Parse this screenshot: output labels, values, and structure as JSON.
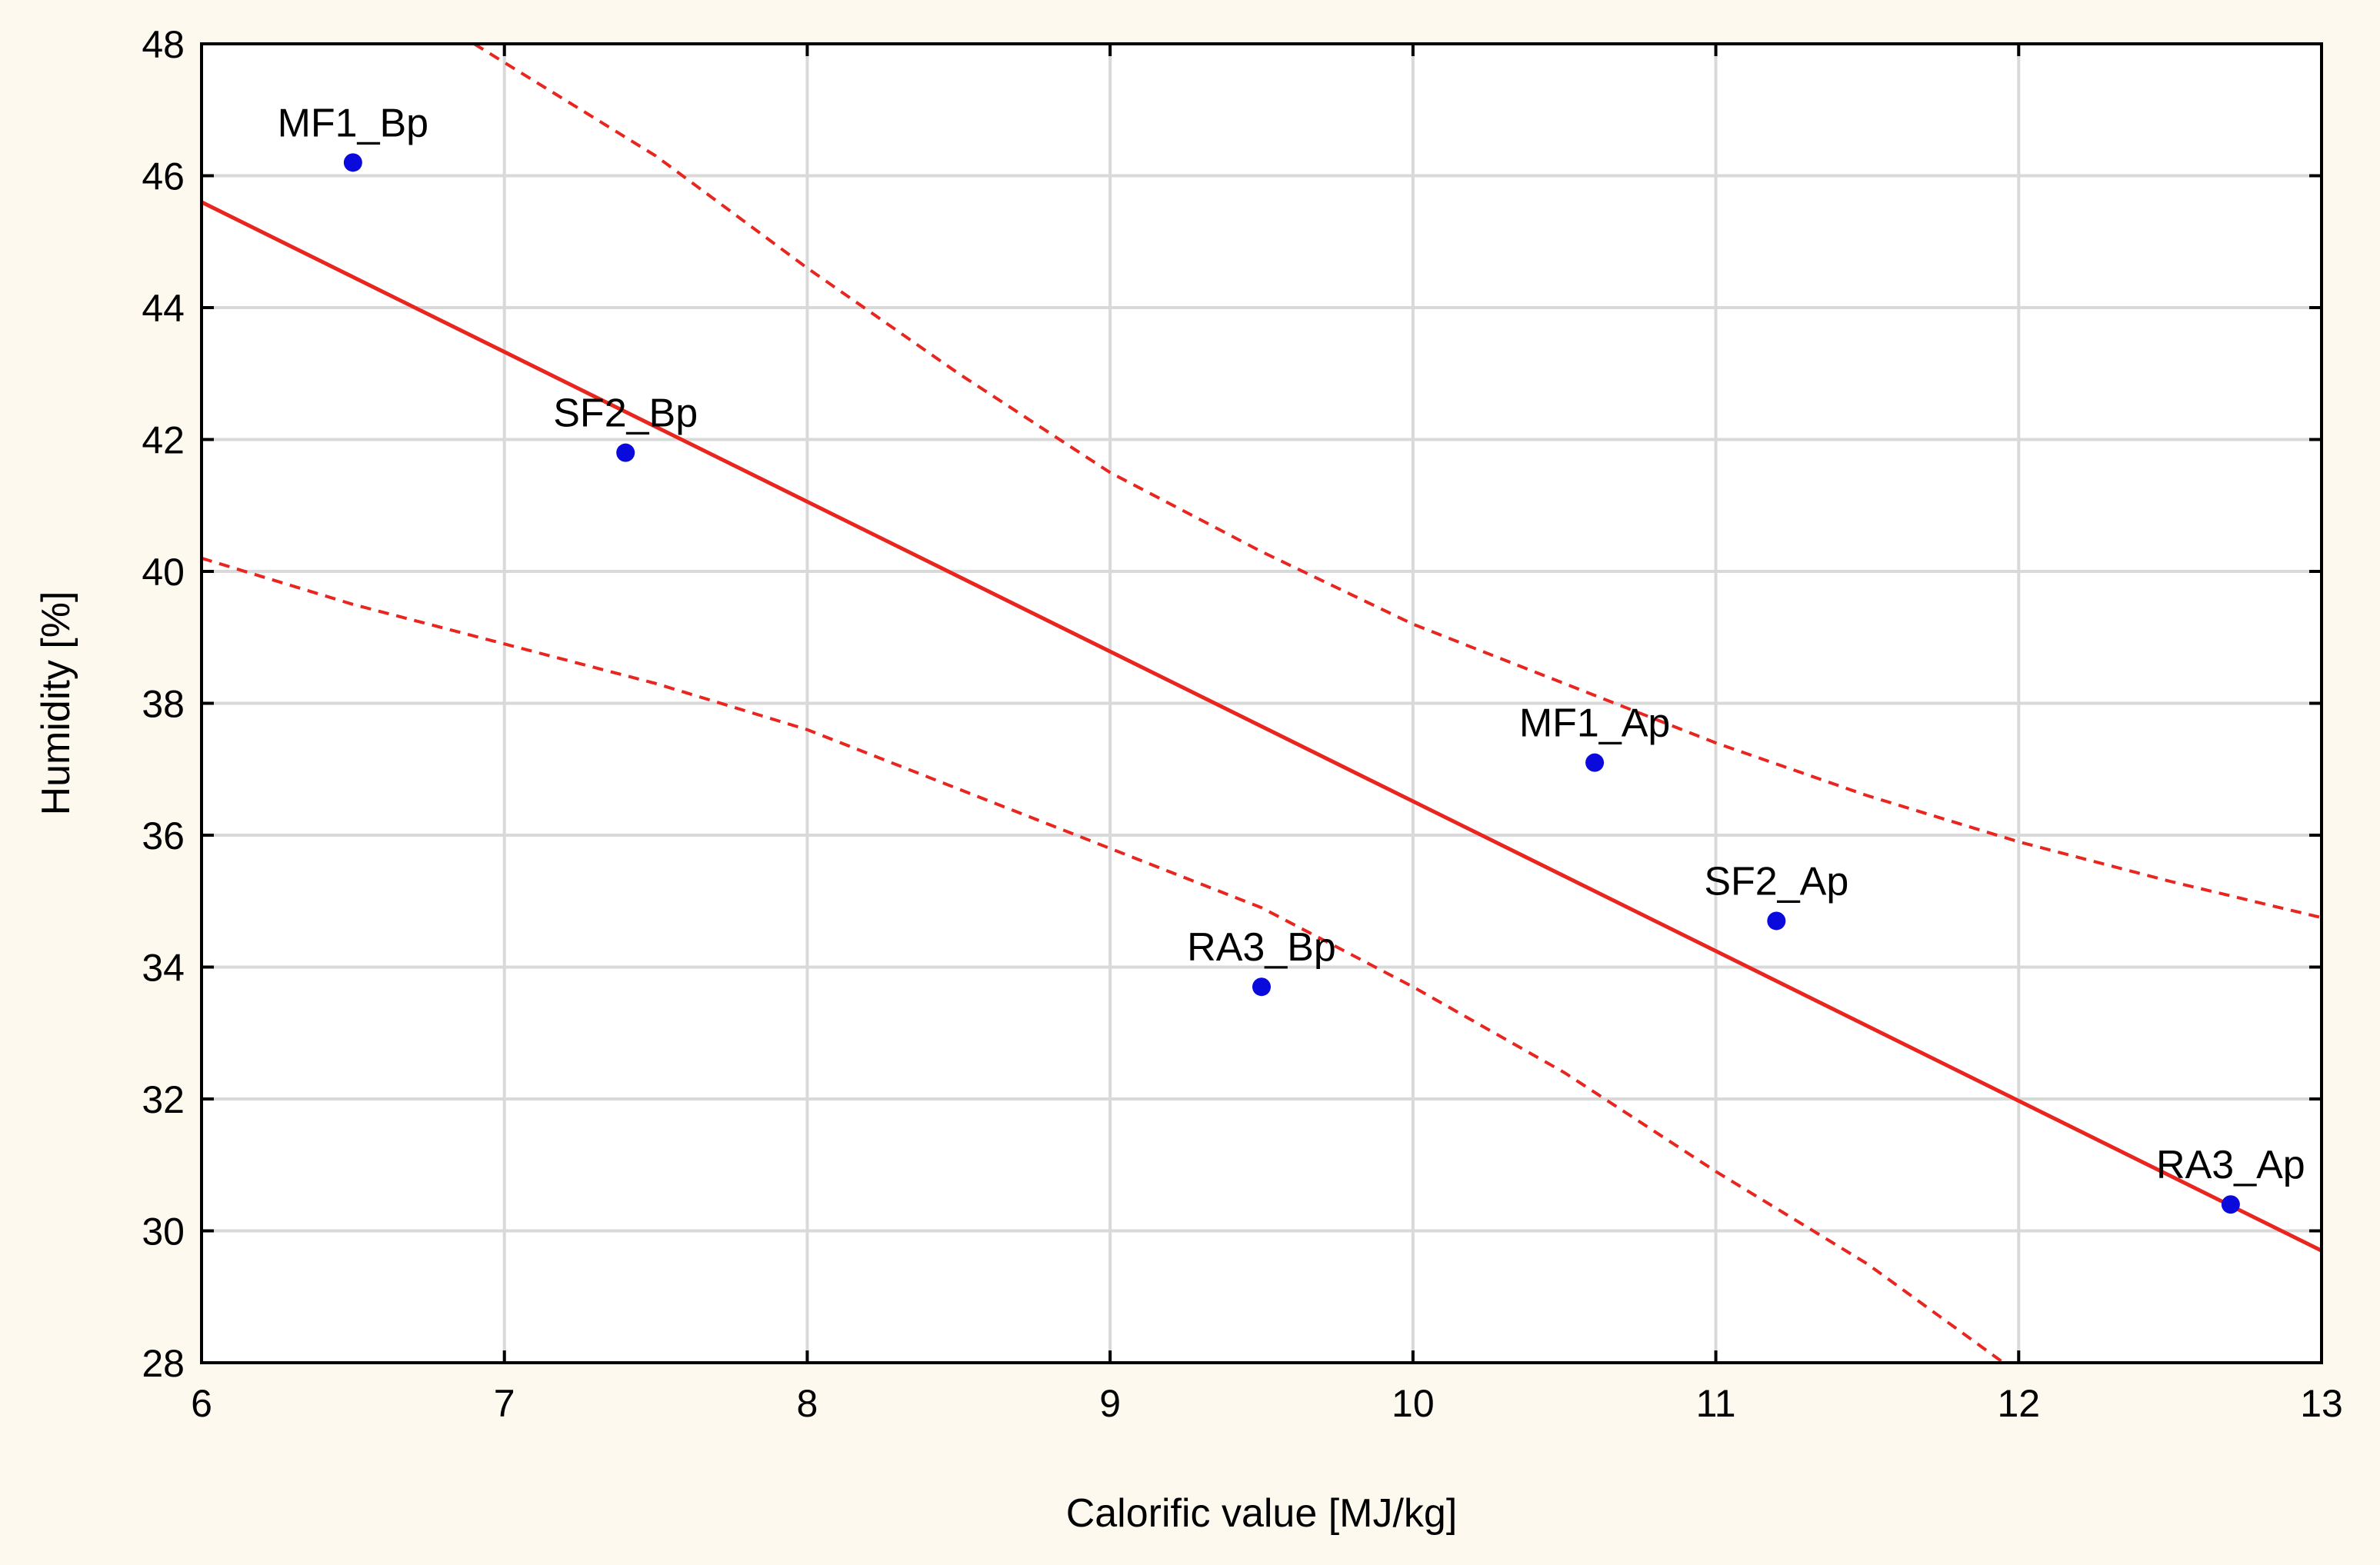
{
  "chart_data": {
    "type": "scatter",
    "title": "",
    "xlabel": "Calorific value [MJ/kg]",
    "ylabel": "Humidity [%]",
    "xlim": [
      6,
      13
    ],
    "ylim": [
      28,
      48
    ],
    "xticks": [
      6,
      7,
      8,
      9,
      10,
      11,
      12,
      13
    ],
    "yticks": [
      28,
      30,
      32,
      34,
      36,
      38,
      40,
      42,
      44,
      46,
      48
    ],
    "grid": true,
    "points": [
      {
        "label": "MF1_Bp",
        "x": 6.5,
        "y": 46.2
      },
      {
        "label": "SF2_Bp",
        "x": 7.4,
        "y": 41.8
      },
      {
        "label": "RA3_Bp",
        "x": 9.5,
        "y": 33.7
      },
      {
        "label": "MF1_Ap",
        "x": 10.6,
        "y": 37.1
      },
      {
        "label": "SF2_Ap",
        "x": 11.2,
        "y": 34.7
      },
      {
        "label": "RA3_Ap",
        "x": 12.7,
        "y": 30.4
      }
    ],
    "regression_line": {
      "name": "Linear fit",
      "x": [
        6,
        13
      ],
      "y": [
        45.6,
        29.7
      ]
    },
    "confidence_upper": {
      "name": "95% confidence band (upper)",
      "x": [
        6.9,
        7.5,
        8.0,
        8.5,
        9.0,
        9.5,
        10.0,
        10.5,
        11.0,
        11.5,
        12.0,
        12.5,
        13.0
      ],
      "y": [
        48.0,
        46.3,
        44.6,
        43.0,
        41.5,
        40.3,
        39.2,
        38.3,
        37.4,
        36.6,
        35.9,
        35.3,
        34.75
      ]
    },
    "confidence_lower": {
      "name": "95% confidence band (lower)",
      "x": [
        6.0,
        6.5,
        7.0,
        7.5,
        8.0,
        8.5,
        9.0,
        9.5,
        10.0,
        10.5,
        11.0,
        11.5,
        11.95
      ],
      "y": [
        40.2,
        39.5,
        38.9,
        38.3,
        37.6,
        36.7,
        35.8,
        34.9,
        33.7,
        32.4,
        30.9,
        29.5,
        28.0
      ]
    },
    "colors": {
      "points": "#0a0adc",
      "fit_line": "#e8261f",
      "grid": "#d9d9d9",
      "axis": "#000000",
      "plot_background": "#ffffff"
    }
  }
}
